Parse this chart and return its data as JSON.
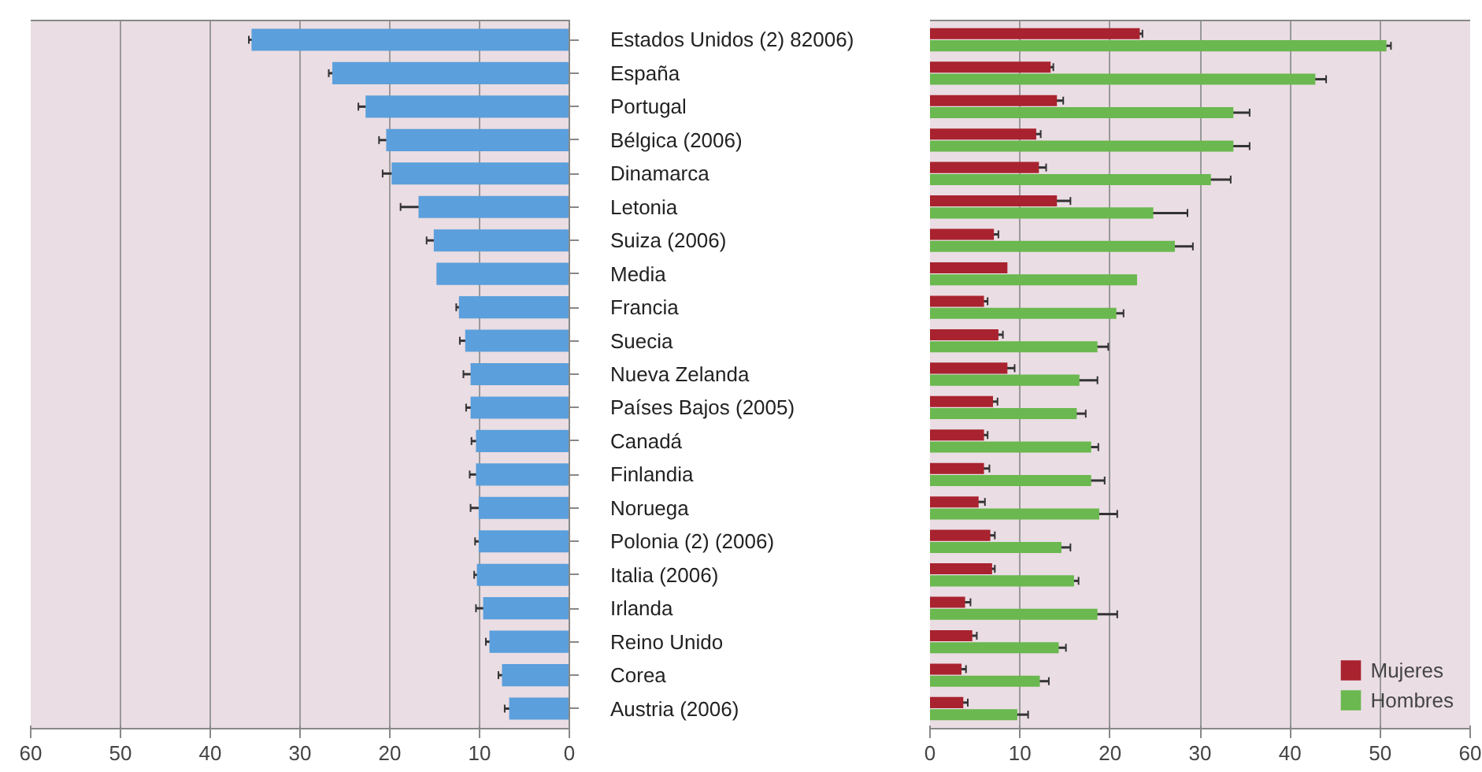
{
  "chart_data": [
    {
      "type": "bar",
      "orientation": "horizontal",
      "categories": [
        "Estados Unidos (2) 82006)",
        "España",
        "Portugal",
        "Bélgica (2006)",
        "Dinamarca",
        "Letonia",
        "Suiza (2006)",
        "Media",
        "Francia",
        "Suecia",
        "Nueva Zelanda",
        "Países Bajos (2005)",
        "Canadá",
        "Finlandia",
        "Noruega",
        "Polonia (2) (2006)",
        "Italia (2006)",
        "Irlanda",
        "Reino Unido",
        "Corea",
        "Austria (2006)"
      ],
      "values": [
        35.4,
        26.4,
        22.7,
        20.4,
        19.8,
        16.8,
        15.1,
        14.8,
        12.3,
        11.6,
        11.0,
        11.0,
        10.4,
        10.4,
        10.1,
        10.1,
        10.3,
        9.6,
        8.9,
        7.5,
        6.7
      ],
      "errors": [
        0.3,
        0.4,
        0.8,
        0.8,
        1.0,
        2.0,
        0.8,
        null,
        0.3,
        0.6,
        0.8,
        0.5,
        0.5,
        0.7,
        0.9,
        0.4,
        0.3,
        0.8,
        0.4,
        0.4,
        0.5
      ],
      "color": "#5b9fdc",
      "xlim": [
        60,
        0
      ],
      "xticks": [
        60,
        50,
        40,
        30,
        20,
        10,
        0
      ],
      "grid": "x"
    },
    {
      "type": "bar",
      "orientation": "horizontal",
      "categories": [
        null,
        null,
        null,
        null,
        null,
        null,
        null,
        null,
        null,
        null,
        null,
        null,
        null,
        null,
        null,
        null,
        null,
        null,
        null,
        null,
        null
      ],
      "series": [
        {
          "name": "Mujeres",
          "color": "#a8232f",
          "values": [
            23.3,
            13.4,
            14.1,
            11.8,
            12.1,
            14.1,
            7.1,
            8.6,
            6.0,
            7.6,
            8.6,
            7.0,
            6.0,
            6.0,
            5.4,
            6.7,
            6.9,
            3.9,
            4.7,
            3.5,
            3.7
          ],
          "errors": [
            0.3,
            0.3,
            0.7,
            0.5,
            0.8,
            1.5,
            0.5,
            null,
            0.4,
            0.5,
            0.8,
            0.5,
            0.4,
            0.6,
            0.7,
            0.5,
            0.3,
            0.6,
            0.5,
            0.5,
            0.5
          ]
        },
        {
          "name": "Hombres",
          "color": "#6ab84f",
          "values": [
            50.7,
            42.8,
            33.7,
            33.7,
            31.2,
            24.8,
            27.2,
            23.0,
            20.7,
            18.6,
            16.6,
            16.3,
            17.9,
            17.9,
            18.8,
            14.6,
            16.0,
            18.6,
            14.3,
            12.2,
            9.7
          ],
          "errors": [
            0.5,
            1.2,
            1.8,
            1.8,
            2.2,
            3.8,
            2.0,
            null,
            0.8,
            1.2,
            2.0,
            1.0,
            0.8,
            1.5,
            2.0,
            1.0,
            0.5,
            2.2,
            0.8,
            1.0,
            1.2
          ]
        }
      ],
      "xlim": [
        0,
        60
      ],
      "xticks": [
        0,
        10,
        20,
        30,
        40,
        50,
        60
      ],
      "grid": "x",
      "legend": "bottom right",
      "tick_labels": "x"
    }
  ]
}
